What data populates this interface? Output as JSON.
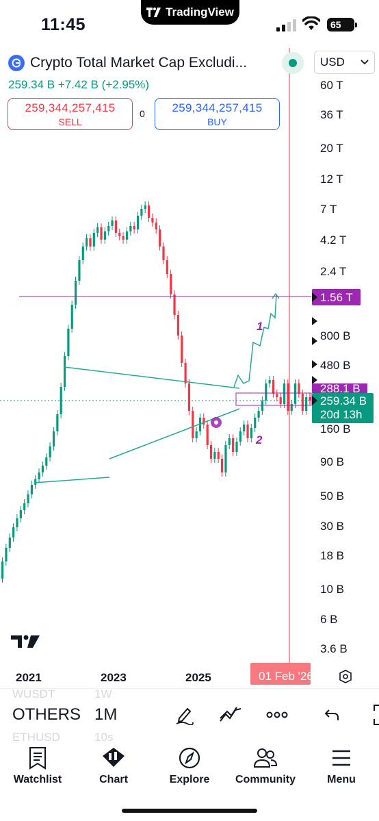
{
  "status_bar": {
    "time": "11:45",
    "battery": "65",
    "island_label": "TradingView"
  },
  "header": {
    "symbol_name": "Crypto Total Market Cap Excludi...",
    "currency": "USD",
    "last_price": "259.34 B",
    "change": "+7.42 B",
    "change_pct": "(+2.95%)",
    "sell_price": "259,344,257,415",
    "sell_label": "SELL",
    "buy_price": "259,344,257,415",
    "buy_label": "BUY",
    "spread": "0"
  },
  "chart_data": {
    "type": "candlestick",
    "symbol": "OTHERS",
    "interval": "1M",
    "scale": "log",
    "price_ticks": [
      "60 T",
      "36 T",
      "20 T",
      "12 T",
      "7 T",
      "4.2 T",
      "2.4 T",
      "800 B",
      "480 B",
      "160 B",
      "90 B",
      "50 B",
      "30 B",
      "18 B",
      "10 B",
      "6 B",
      "3.6 B"
    ],
    "time_ticks": [
      "2021",
      "2023",
      "2025"
    ],
    "price_labels": {
      "target": "1.56 T",
      "upper_partial": "288.1 B",
      "current": "259.34 B",
      "countdown": "20d 13h"
    },
    "time_cursor": "01 Feb '26",
    "annotations": [
      "1",
      "2"
    ],
    "colors": {
      "up": "#089981",
      "down": "#f23645",
      "drawing": "#9c27b0",
      "trend": "#22ab94",
      "cursor": "#f23645"
    }
  },
  "toolbar": {
    "symbols": [
      "WUSDT",
      "OTHERS",
      "ETHUSD"
    ],
    "intervals": [
      "1W",
      "1M",
      "10s"
    ],
    "tools": [
      "draw-icon",
      "indicators-icon",
      "more-icon",
      "undo-icon",
      "fullscreen-icon"
    ]
  },
  "nav": {
    "watchlist": "Watchlist",
    "chart": "Chart",
    "explore": "Explore",
    "community": "Community",
    "menu": "Menu"
  }
}
